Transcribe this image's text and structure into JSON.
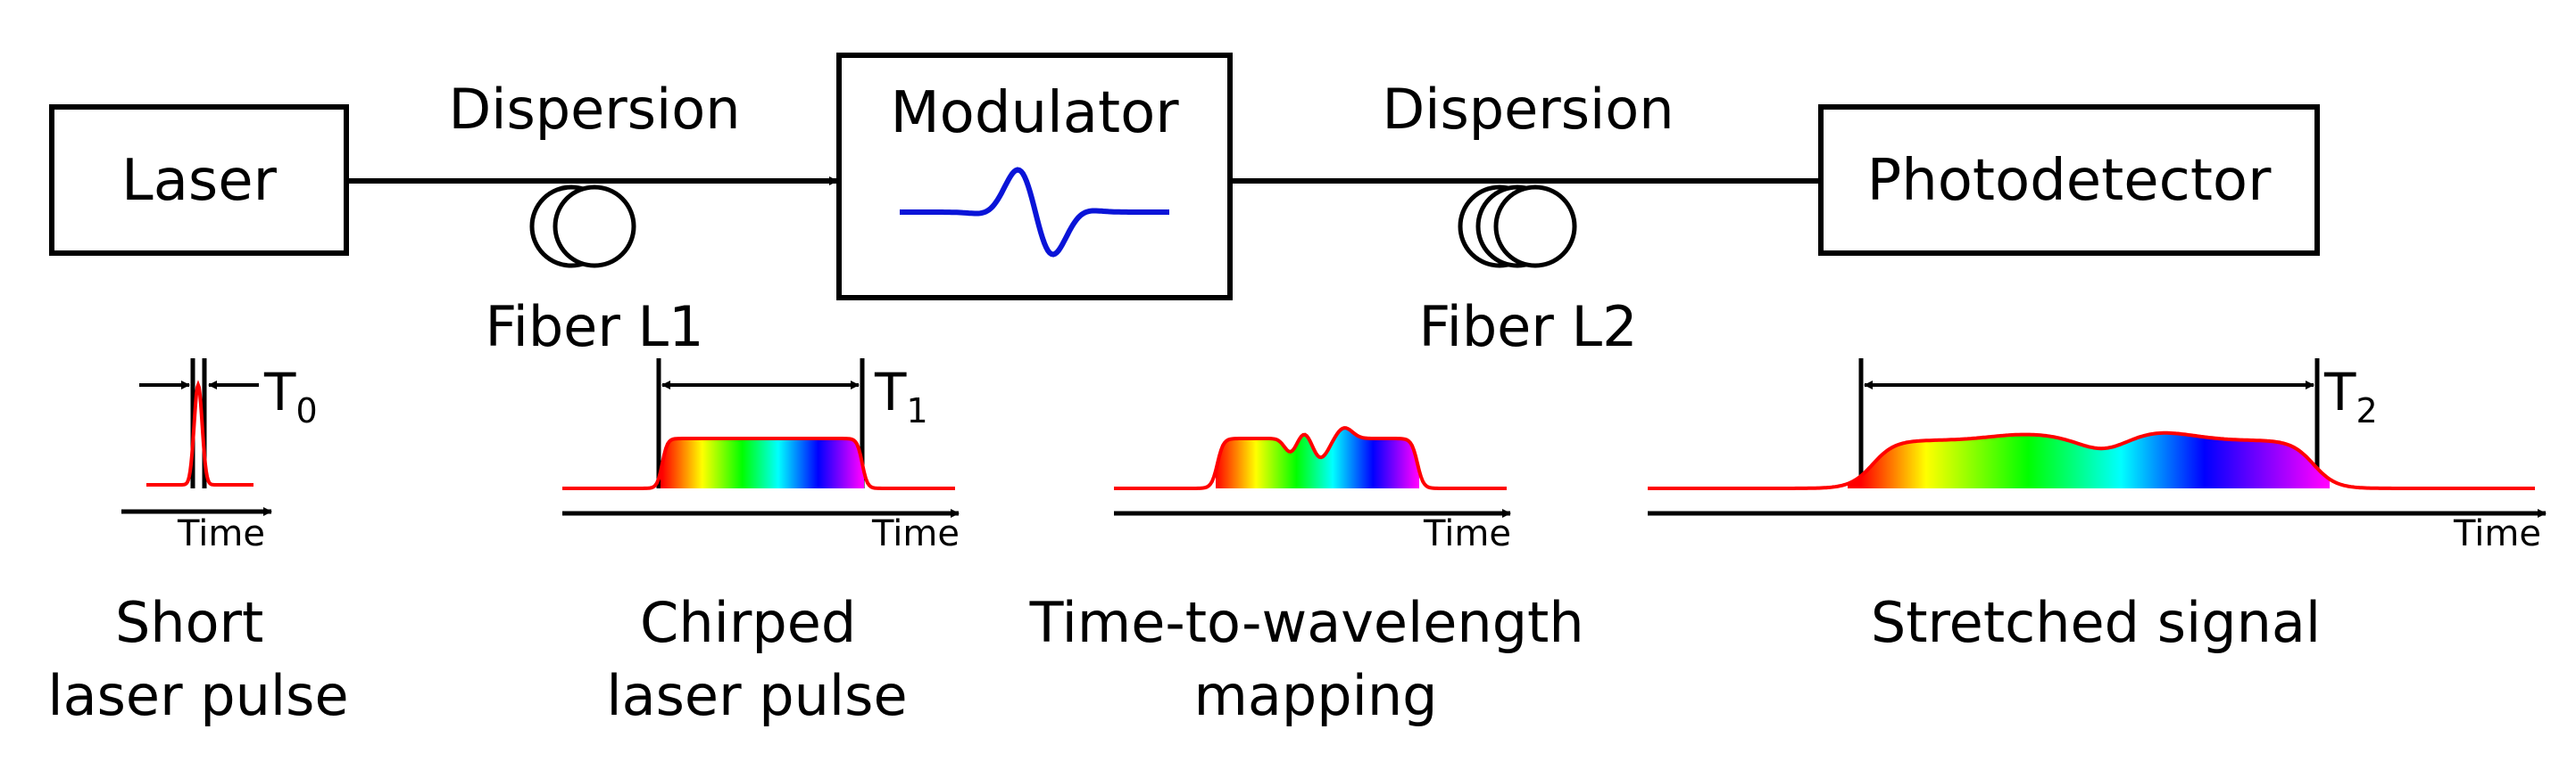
{
  "blocks": {
    "laser": "Laser",
    "modulator": "Modulator",
    "photodetector": "Photodetector"
  },
  "fibers": {
    "dispersion1": "Dispersion",
    "fiber1": "Fiber L1",
    "dispersion2": "Dispersion",
    "fiber2": "Fiber L2"
  },
  "pulses": {
    "t0": {
      "symbol": "T",
      "sub": "0"
    },
    "t1": {
      "symbol": "T",
      "sub": "1"
    },
    "t2": {
      "symbol": "T",
      "sub": "2"
    },
    "time_axis_label": "Time"
  },
  "captions": {
    "short": [
      "Short",
      "laser pulse"
    ],
    "chirped": [
      "Chirped",
      "laser pulse"
    ],
    "mapping": [
      "Time-to-wavelength",
      "mapping"
    ],
    "stretched": [
      "Stretched signal"
    ]
  },
  "colors": {
    "pulse_outline": "#ff0000",
    "modulator_waveform": "#0a14d8",
    "spectrum": [
      "#ff0000",
      "#ffff00",
      "#00ff00",
      "#00ffff",
      "#0000ff",
      "#ff00ff"
    ]
  }
}
